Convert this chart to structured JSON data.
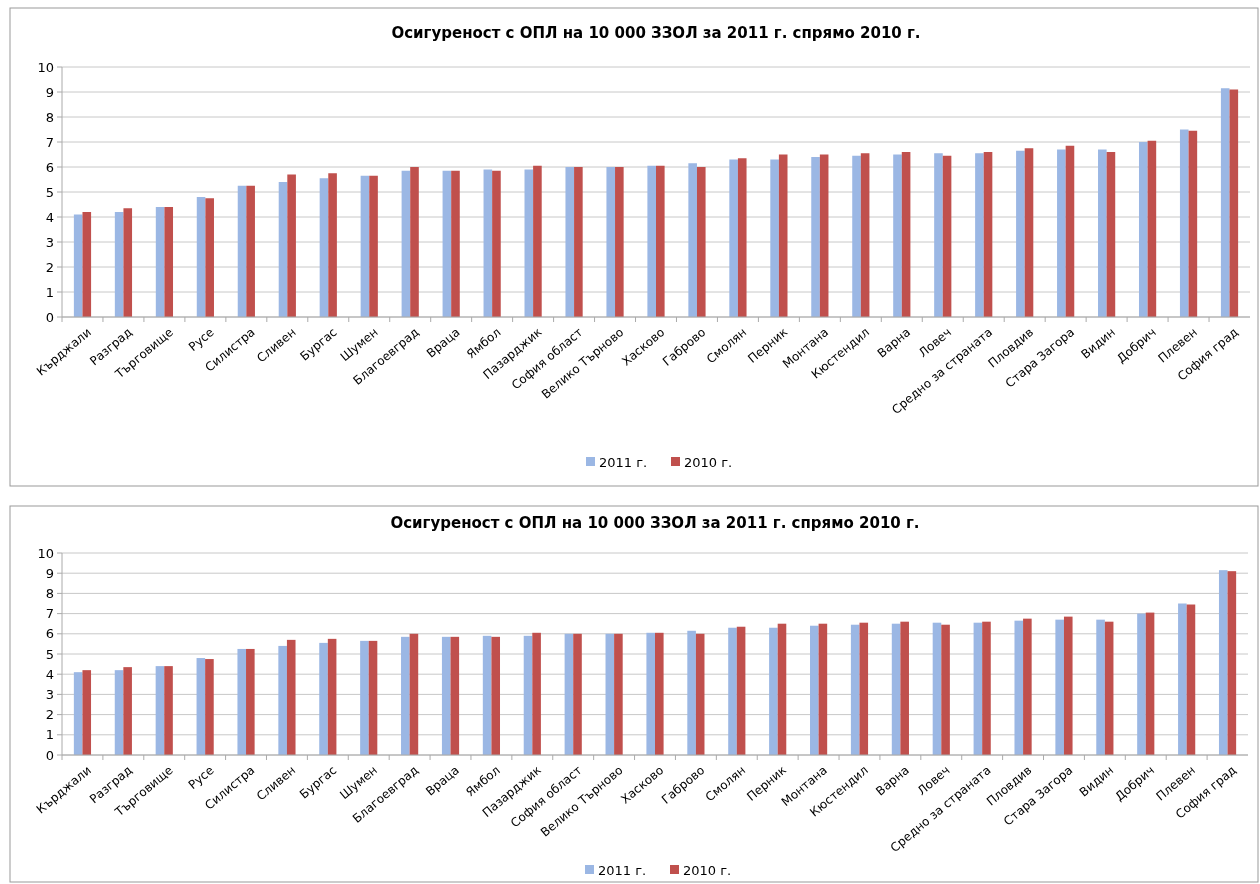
{
  "chart_data": [
    {
      "type": "bar",
      "title": "Осигуреност с ОПЛ на 10 000 ЗЗОЛ за 2011 г. спрямо 2010 г.",
      "categories": [
        "Кърджали",
        "Разград",
        "Търговище",
        "Русе",
        "Силистра",
        "Сливен",
        "Бургас",
        "Шумен",
        "Благоевград",
        "Враца",
        "Ямбол",
        "Пазарджик",
        "София област",
        "Велико Търново",
        "Хасково",
        "Габрово",
        "Смолян",
        "Перник",
        "Монтана",
        "Кюстендил",
        "Варна",
        "Ловеч",
        "Средно за страната",
        "Пловдив",
        "Стара Загора",
        "Видин",
        "Добрич",
        "Плевен",
        "София град"
      ],
      "series": [
        {
          "name": "2011 г.",
          "color": "#9bb7e4",
          "values": [
            4.1,
            4.2,
            4.4,
            4.8,
            5.25,
            5.4,
            5.55,
            5.65,
            5.85,
            5.85,
            5.9,
            5.9,
            6.0,
            6.0,
            6.05,
            6.15,
            6.3,
            6.3,
            6.4,
            6.45,
            6.5,
            6.55,
            6.55,
            6.65,
            6.7,
            6.7,
            7.0,
            7.5,
            9.15
          ]
        },
        {
          "name": "2010 г.",
          "color": "#c0504d",
          "values": [
            4.2,
            4.35,
            4.4,
            4.75,
            5.25,
            5.7,
            5.75,
            5.65,
            6.0,
            5.85,
            5.85,
            6.05,
            6.0,
            6.0,
            6.05,
            6.0,
            6.35,
            6.5,
            6.5,
            6.55,
            6.6,
            6.45,
            6.6,
            6.75,
            6.85,
            6.6,
            7.05,
            7.45,
            9.1
          ]
        }
      ],
      "ylim": [
        0,
        10
      ],
      "yticks": [
        0,
        1,
        2,
        3,
        4,
        5,
        6,
        7,
        8,
        9,
        10
      ],
      "grid": "y",
      "legend": "bottom"
    },
    {
      "type": "bar",
      "title": "Осигуреност с ОПЛ на 10 000 ЗЗОЛ за 2011 г. спрямо 2010 г.",
      "categories": [
        "Кърджали",
        "Разград",
        "Търговище",
        "Русе",
        "Силистра",
        "Сливен",
        "Бургас",
        "Шумен",
        "Благоевград",
        "Враца",
        "Ямбол",
        "Пазарджик",
        "София област",
        "Велико Търново",
        "Хасково",
        "Габрово",
        "Смолян",
        "Перник",
        "Монтана",
        "Кюстендил",
        "Варна",
        "Ловеч",
        "Средно за страната",
        "Пловдив",
        "Стара Загора",
        "Видин",
        "Добрич",
        "Плевен",
        "София град"
      ],
      "series": [
        {
          "name": "2011 г.",
          "color": "#9bb7e4",
          "values": [
            4.1,
            4.2,
            4.4,
            4.8,
            5.25,
            5.4,
            5.55,
            5.65,
            5.85,
            5.85,
            5.9,
            5.9,
            6.0,
            6.0,
            6.05,
            6.15,
            6.3,
            6.3,
            6.4,
            6.45,
            6.5,
            6.55,
            6.55,
            6.65,
            6.7,
            6.7,
            7.0,
            7.5,
            9.15
          ]
        },
        {
          "name": "2010 г.",
          "color": "#c0504d",
          "values": [
            4.2,
            4.35,
            4.4,
            4.75,
            5.25,
            5.7,
            5.75,
            5.65,
            6.0,
            5.85,
            5.85,
            6.05,
            6.0,
            6.0,
            6.05,
            6.0,
            6.35,
            6.5,
            6.5,
            6.55,
            6.6,
            6.45,
            6.6,
            6.75,
            6.85,
            6.6,
            7.05,
            7.45,
            9.1
          ]
        }
      ],
      "ylim": [
        0,
        10
      ],
      "yticks": [
        0,
        1,
        2,
        3,
        4,
        5,
        6,
        7,
        8,
        9,
        10
      ],
      "grid": "y",
      "legend": "bottom"
    }
  ]
}
